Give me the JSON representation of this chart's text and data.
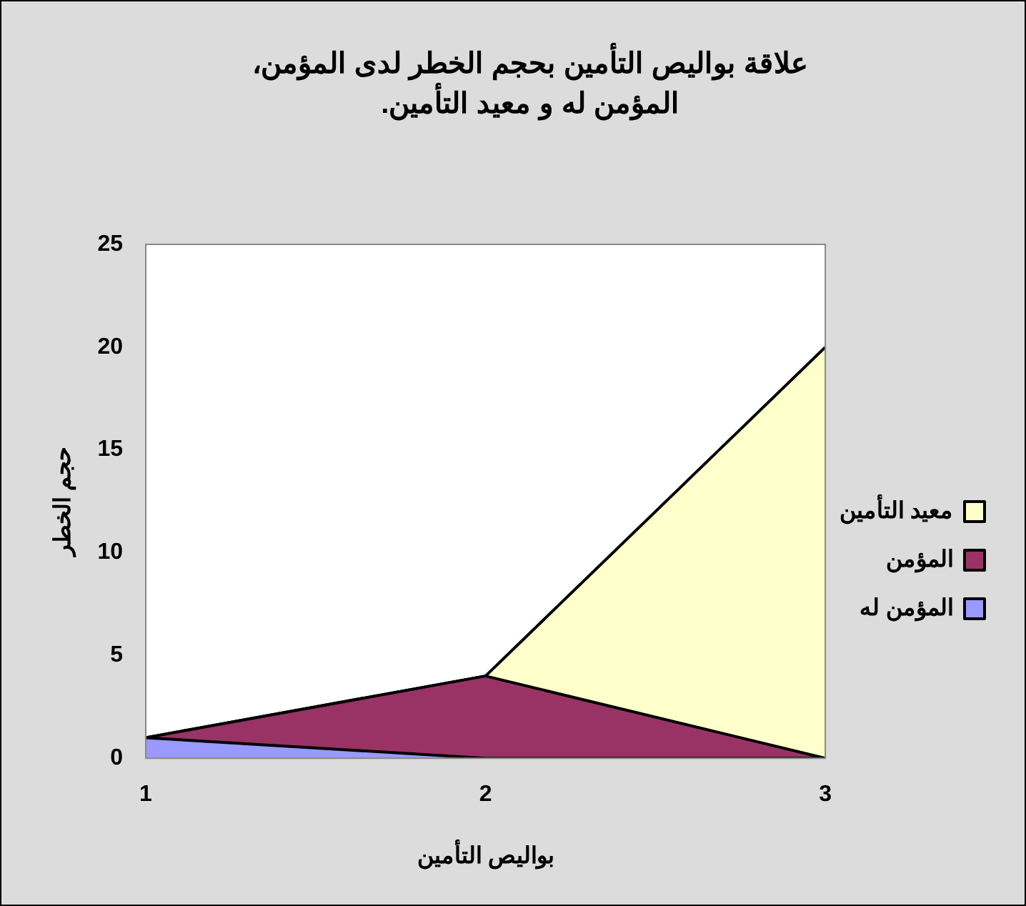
{
  "chart_data": {
    "type": "area",
    "title": "علاقة بواليص التأمين بحجم الخطر لدى المؤمن، المؤمن له و معيد التأمين.",
    "xlabel": "بواليص التأمين",
    "ylabel": "حجم الخطر",
    "categories": [
      "1",
      "2",
      "3"
    ],
    "stacked": true,
    "series": [
      {
        "name": "المؤمن له",
        "color": "#9999ff",
        "values": [
          1,
          0,
          0
        ]
      },
      {
        "name": "المؤمن",
        "color": "#993366",
        "values": [
          0,
          4,
          0
        ]
      },
      {
        "name": "معيد التأمين",
        "color": "#ffffcc",
        "values": [
          0,
          0,
          20
        ]
      }
    ],
    "ylim": [
      0,
      25
    ],
    "yticks": [
      0,
      5,
      10,
      15,
      20,
      25
    ],
    "grid": false,
    "legend": "right"
  }
}
